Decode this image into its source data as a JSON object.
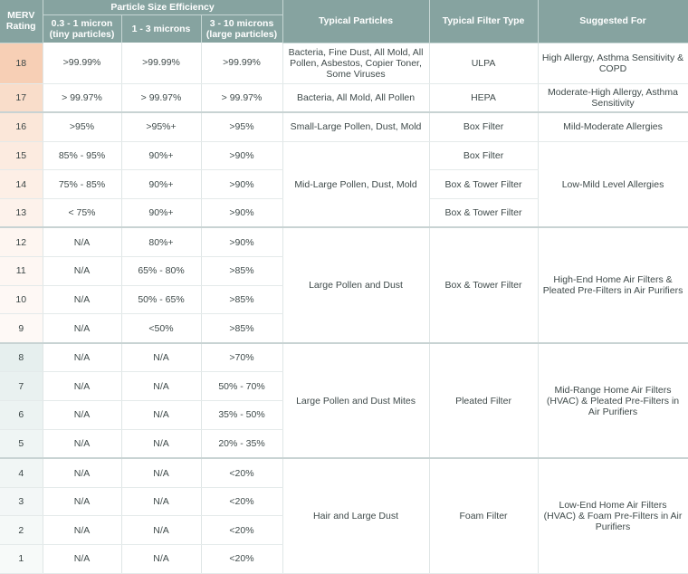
{
  "header": {
    "merv_rating": "MERV Rating",
    "particle_size_efficiency": "Particle Size Efficiency",
    "col_03_1": "0.3 - 1 micron (tiny particles)",
    "col_1_3": "1 - 3 microns",
    "col_3_10": "3 - 10 microns (large particles)",
    "typical_particles": "Typical Particles",
    "typical_filter_type": "Typical Filter Type",
    "suggested_for": "Suggested For"
  },
  "rows": [
    {
      "rating": "18",
      "e1": ">99.99%",
      "e2": ">99.99%",
      "e3": ">99.99%"
    },
    {
      "rating": "17",
      "e1": "> 99.97%",
      "e2": "> 99.97%",
      "e3": "> 99.97%"
    },
    {
      "rating": "16",
      "e1": ">95%",
      "e2": ">95%+",
      "e3": ">95%"
    },
    {
      "rating": "15",
      "e1": "85% - 95%",
      "e2": "90%+",
      "e3": ">90%"
    },
    {
      "rating": "14",
      "e1": "75% - 85%",
      "e2": "90%+",
      "e3": ">90%"
    },
    {
      "rating": "13",
      "e1": "< 75%",
      "e2": "90%+",
      "e3": ">90%"
    },
    {
      "rating": "12",
      "e1": "N/A",
      "e2": "80%+",
      "e3": ">90%"
    },
    {
      "rating": "11",
      "e1": "N/A",
      "e2": "65% - 80%",
      "e3": ">85%"
    },
    {
      "rating": "10",
      "e1": "N/A",
      "e2": "50% - 65%",
      "e3": ">85%"
    },
    {
      "rating": "9",
      "e1": "N/A",
      "e2": "<50%",
      "e3": ">85%"
    },
    {
      "rating": "8",
      "e1": "N/A",
      "e2": "N/A",
      "e3": ">70%"
    },
    {
      "rating": "7",
      "e1": "N/A",
      "e2": "N/A",
      "e3": "50% - 70%"
    },
    {
      "rating": "6",
      "e1": "N/A",
      "e2": "N/A",
      "e3": "35% - 50%"
    },
    {
      "rating": "5",
      "e1": "N/A",
      "e2": "N/A",
      "e3": "20% - 35%"
    },
    {
      "rating": "4",
      "e1": "N/A",
      "e2": "N/A",
      "e3": "<20%"
    },
    {
      "rating": "3",
      "e1": "N/A",
      "e2": "N/A",
      "e3": "<20%"
    },
    {
      "rating": "2",
      "e1": "N/A",
      "e2": "N/A",
      "e3": "<20%"
    },
    {
      "rating": "1",
      "e1": "N/A",
      "e2": "N/A",
      "e3": "<20%"
    }
  ],
  "particles": {
    "r18": "Bacteria, Fine Dust, All Mold, All Pollen, Asbestos, Copier Toner, Some Viruses",
    "r17": "Bacteria, All Mold, All Pollen",
    "r16": "Small-Large Pollen, Dust, Mold",
    "r15_13": "Mid-Large Pollen, Dust, Mold",
    "r12_9": "Large Pollen and Dust",
    "r8_5": "Large Pollen and Dust Mites",
    "r4_1": "Hair and Large Dust"
  },
  "filter_types": {
    "r18": "ULPA",
    "r17": "HEPA",
    "r16": "Box Filter",
    "r15": "Box Filter",
    "r14": "Box & Tower Filter",
    "r13": "Box & Tower Filter",
    "r12_9": "Box & Tower Filter",
    "r8_5": "Pleated Filter",
    "r4_1": "Foam Filter"
  },
  "suggested": {
    "r18": "High Allergy, Asthma Sensitivity & COPD",
    "r17": "Moderate-High Allergy, Asthma Sensitivity",
    "r16": "Mild-Moderate Allergies",
    "r15_13": "Low-Mild Level Allergies",
    "r12_9": "High-End Home Air Filters & Pleated Pre-Filters in Air Purifiers",
    "r8_5": "Mid-Range Home Air Filters (HVAC) & Pleated Pre-Filters in Air Purifiers",
    "r4_1": "Low-End Home Air Filters (HVAC) & Foam Pre-Filters in Air Purifiers"
  },
  "colors": {
    "header_bg": "#86a3a0",
    "high_rating_shade": "#f7cfb5",
    "low_rating_shade": "#e6efee"
  }
}
